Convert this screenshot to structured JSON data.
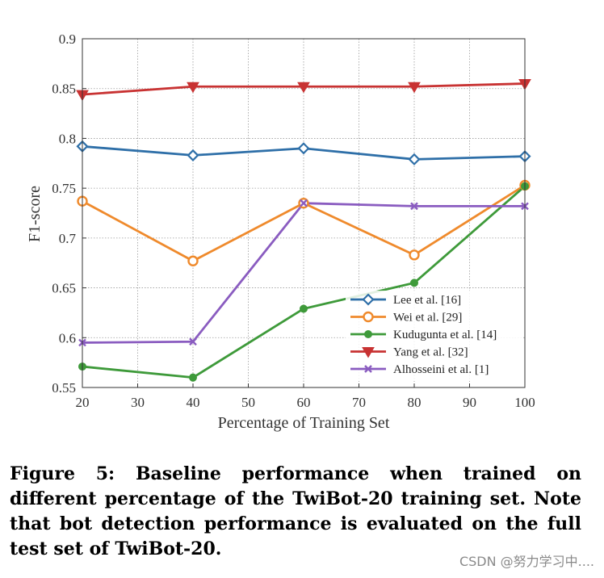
{
  "chart_data": {
    "type": "line",
    "title": "",
    "xlabel": "Percentage of Training Set",
    "ylabel": "F1-score",
    "x": [
      20,
      40,
      60,
      80,
      100
    ],
    "xlim": [
      20,
      100
    ],
    "ylim": [
      0.55,
      0.9
    ],
    "xticks": [
      "20",
      "30",
      "40",
      "50",
      "60",
      "70",
      "80",
      "90",
      "100"
    ],
    "yticks": [
      "0.55",
      "0.6",
      "0.65",
      "0.7",
      "0.75",
      "0.8",
      "0.85",
      "0.9"
    ],
    "grid": true,
    "legend_position": "bottom-right",
    "series": [
      {
        "name": "Lee et al. [16]",
        "values": [
          0.792,
          0.783,
          0.79,
          0.779,
          0.782
        ],
        "color": "#2e6fa8",
        "marker": "diamond"
      },
      {
        "name": "Wei et al. [29]",
        "values": [
          0.737,
          0.677,
          0.735,
          0.683,
          0.753
        ],
        "color": "#ef8a2c",
        "marker": "circle"
      },
      {
        "name": "Kudugunta et al. [14]",
        "values": [
          0.571,
          0.56,
          0.629,
          0.655,
          0.752
        ],
        "color": "#3e9a3a",
        "marker": "dot"
      },
      {
        "name": "Yang et al. [32]",
        "values": [
          0.844,
          0.852,
          0.852,
          0.852,
          0.855
        ],
        "color": "#c83232",
        "marker": "triangle-down"
      },
      {
        "name": "Alhosseini et al. [1]",
        "values": [
          0.595,
          0.596,
          0.735,
          0.732,
          0.732
        ],
        "color": "#8a5cc0",
        "marker": "x"
      }
    ]
  },
  "caption": "Figure 5: Baseline performance when trained on different percentage of the TwiBot-20 training set. Note that bot detection performance is evaluated on the full test set of TwiBot-20.",
  "watermark": "CSDN @努力学习中...."
}
